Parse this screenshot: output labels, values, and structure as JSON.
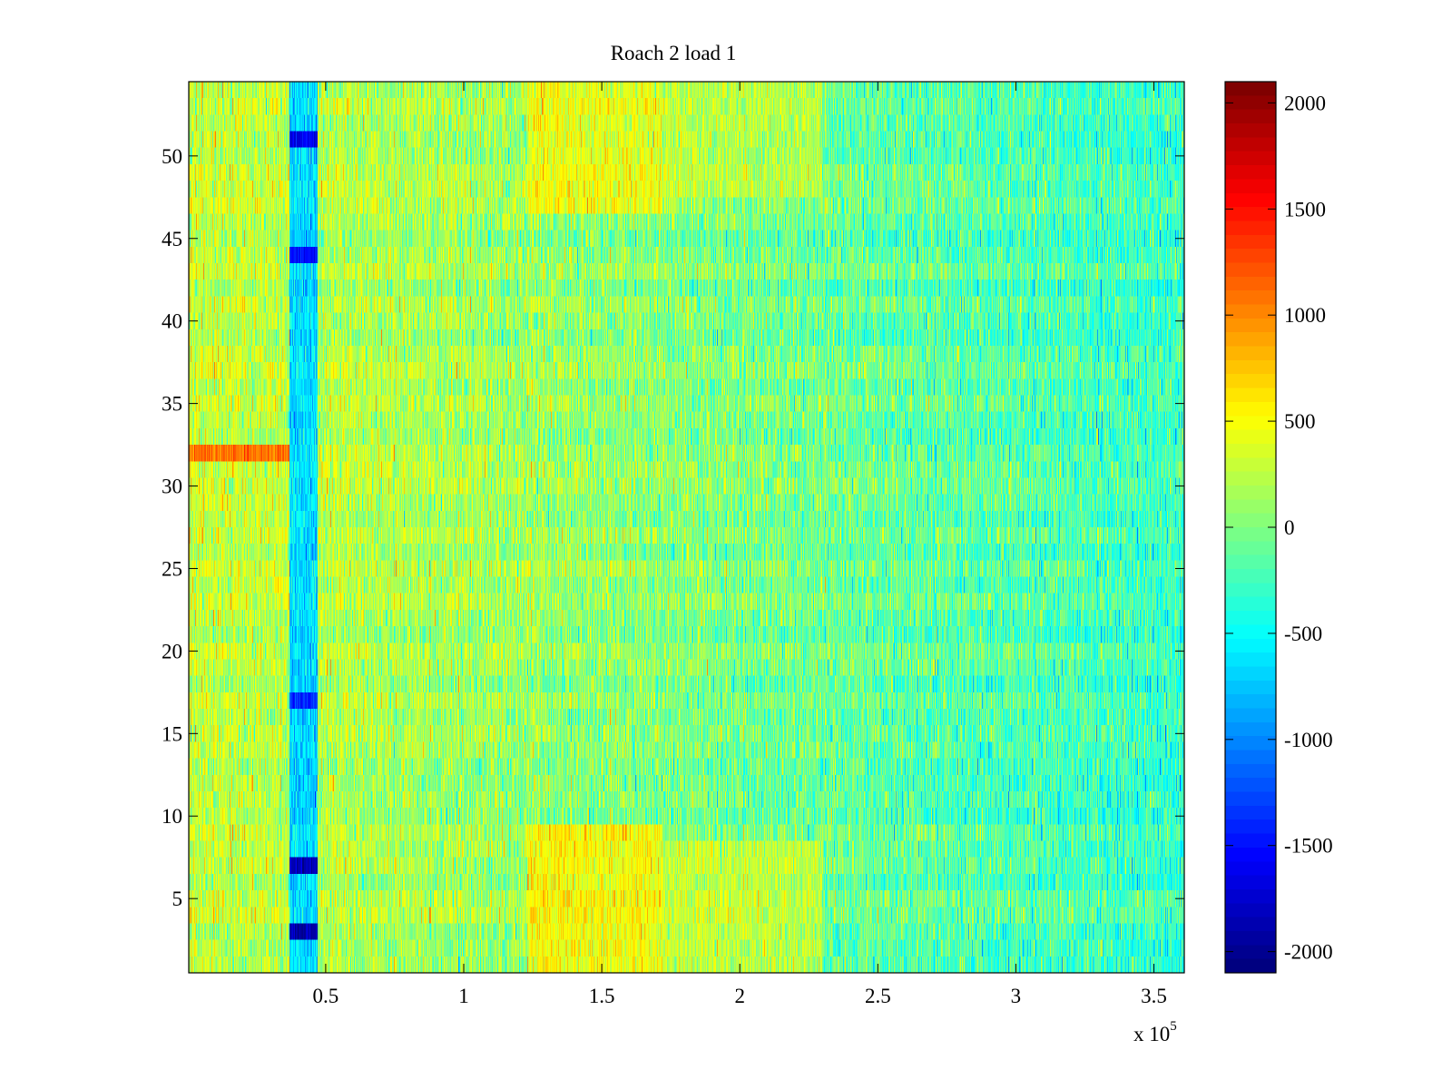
{
  "chart_data": {
    "type": "heatmap",
    "title": "Roach 2 load 1",
    "xlabel": "",
    "ylabel": "",
    "x_multiplier_label": {
      "base": "x 10",
      "exponent": "5"
    },
    "xlim": [
      0.004,
      3.61
    ],
    "ylim": [
      0.5,
      54.5
    ],
    "x_unit_scale": 100000,
    "xticks": [
      0.5,
      1,
      1.5,
      2,
      2.5,
      3,
      3.5
    ],
    "xtick_labels": [
      "0.5",
      "1",
      "1.5",
      "2",
      "2.5",
      "3",
      "3.5"
    ],
    "yticks": [
      5,
      10,
      15,
      20,
      25,
      30,
      35,
      40,
      45,
      50
    ],
    "ytick_labels": [
      "5",
      "10",
      "15",
      "20",
      "25",
      "30",
      "35",
      "40",
      "45",
      "50"
    ],
    "rows": 54,
    "colormap": "jet",
    "colorbar": {
      "clim": [
        -2100,
        2100
      ],
      "ticks": [
        -2000,
        -1500,
        -1000,
        -500,
        0,
        500,
        1000,
        1500,
        2000
      ],
      "tick_labels": [
        "-2000",
        "-1500",
        "-1000",
        "-500",
        "0",
        "500",
        "1000",
        "1500",
        "2000"
      ],
      "placement": "right"
    },
    "features": {
      "column_bands": [
        {
          "x_range": [
            0.37,
            0.47
          ],
          "value": -1000,
          "note": "blue vertical strip"
        },
        {
          "x_range": [
            1.23,
            1.72
          ],
          "value": 600,
          "rows": [
            1,
            9
          ],
          "note": "hot region bottom"
        },
        {
          "x_range": [
            1.23,
            1.72
          ],
          "value": 500,
          "rows": [
            47,
            54
          ],
          "note": "hot region top"
        },
        {
          "x_range": [
            1.72,
            2.3
          ],
          "value": 350,
          "rows": [
            1,
            8
          ],
          "note": "warm region bottom"
        },
        {
          "x_range": [
            1.72,
            2.3
          ],
          "value": 300,
          "rows": [
            48,
            54
          ],
          "note": "warm region top"
        }
      ],
      "row_hotspots": [
        {
          "row": 32,
          "x_range": [
            0.004,
            0.37
          ],
          "value": 1100
        }
      ],
      "strong_cold_spots": [
        {
          "row": 3,
          "x_range": [
            0.37,
            0.47
          ],
          "value": -1900
        },
        {
          "row": 7,
          "x_range": [
            0.37,
            0.47
          ],
          "value": -1900
        },
        {
          "row": 51,
          "x_range": [
            0.37,
            0.47
          ],
          "value": -1600
        },
        {
          "row": 44,
          "x_range": [
            0.37,
            0.47
          ],
          "value": -1500
        },
        {
          "row": 17,
          "x_range": [
            0.37,
            0.47
          ],
          "value": -1400
        }
      ],
      "baseline_gradient": {
        "left_value": 300,
        "right_value": -300
      }
    }
  }
}
